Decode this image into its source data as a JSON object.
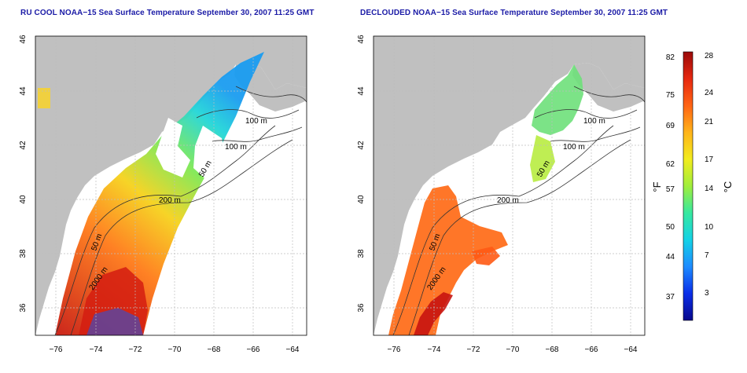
{
  "panels": [
    {
      "id": "left",
      "title": "RU COOL NOAA−15 Sea Surface Temperature September 30, 2007 11:25 GMT",
      "contours": [
        "100 m",
        "100 m",
        "50 m",
        "200 m",
        "50 m",
        "2000 m"
      ]
    },
    {
      "id": "right",
      "title": "DECLOUDED NOAA−15 Sea Surface Temperature September 30, 2007 11:25 GMT",
      "contours": [
        "100 m",
        "100 m",
        "50 m",
        "200 m",
        "50 m",
        "2000 m"
      ]
    }
  ],
  "axes": {
    "x_ticks": [
      "−76",
      "−74",
      "−72",
      "−70",
      "−68",
      "−66",
      "−64"
    ],
    "y_ticks": [
      "36",
      "38",
      "40",
      "42",
      "44",
      "46"
    ],
    "x_range": [
      -77.2,
      -63.0
    ],
    "y_range": [
      35.0,
      46.0
    ]
  },
  "colorbar": {
    "f_unit": "°F",
    "c_unit": "°C",
    "f_ticks": [
      "82",
      "75",
      "69",
      "62",
      "57",
      "50",
      "44",
      "37"
    ],
    "c_ticks": [
      "28",
      "24",
      "21",
      "17",
      "14",
      "10",
      "7",
      "3"
    ],
    "colors": [
      "#08088c",
      "#0a2ee8",
      "#1e8cff",
      "#14d2e6",
      "#36e8a0",
      "#a0ee3c",
      "#f2ec1e",
      "#ffb41a",
      "#ff6414",
      "#e62810",
      "#9a0a0a"
    ]
  },
  "colors": {
    "land": "#c0c0c0",
    "title": "#1a1aa6",
    "grid": "#bdbdbd"
  }
}
